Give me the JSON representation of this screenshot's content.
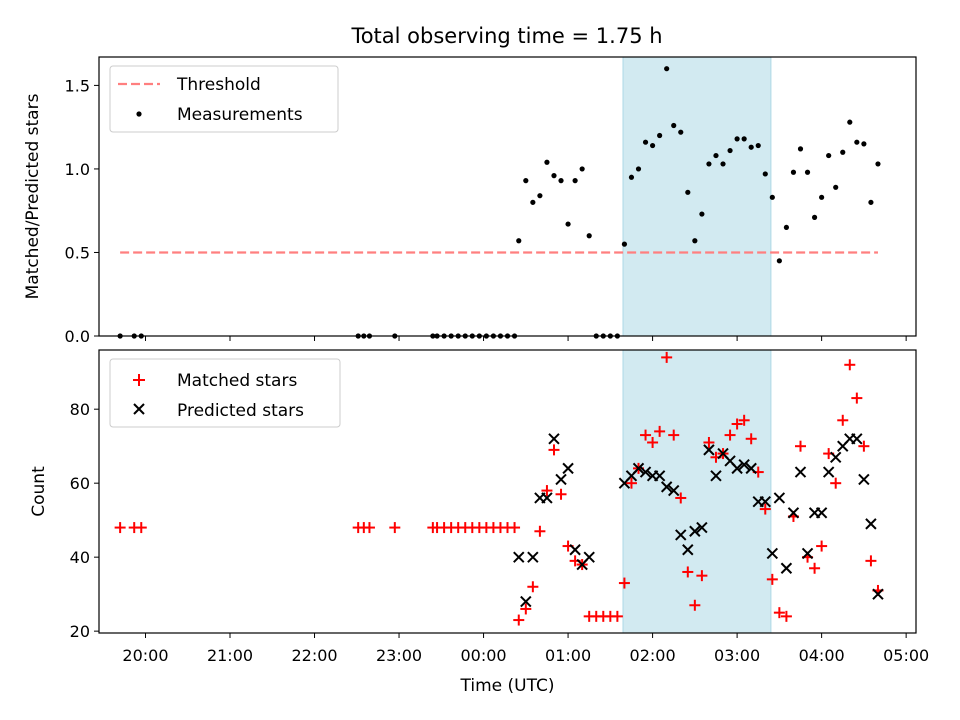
{
  "chart_data": [
    {
      "type": "scatter",
      "title": "Total observing time = 1.75 h",
      "xlabel": "",
      "ylabel": "Matched/Predicted stars",
      "xlim": [
        "19:27",
        "05:07"
      ],
      "ylim": [
        0,
        1.67
      ],
      "yticks": [
        0.0,
        0.5,
        1.0,
        1.5
      ],
      "ytick_labels": [
        "0.0",
        "0.5",
        "1.0",
        "1.5"
      ],
      "grid": false,
      "legend_position": "upper-left",
      "shaded_span": {
        "start": "01:39",
        "end": "03:24",
        "color": "#add8e6"
      },
      "series": [
        {
          "name": "Threshold",
          "kind": "dashed-line",
          "color": "#ff7f7f",
          "x": [
            "19:42",
            "04:40"
          ],
          "y": [
            0.5,
            0.5
          ]
        },
        {
          "name": "Measurements",
          "kind": "dots",
          "color": "#000000",
          "points": [
            [
              "19:42",
              0
            ],
            [
              "19:52",
              0
            ],
            [
              "19:57",
              0
            ],
            [
              "22:31",
              0
            ],
            [
              "22:35",
              0
            ],
            [
              "22:39",
              0
            ],
            [
              "22:57",
              0
            ],
            [
              "23:24",
              0
            ],
            [
              "23:27",
              0
            ],
            [
              "23:32",
              0
            ],
            [
              "23:37",
              0
            ],
            [
              "23:42",
              0
            ],
            [
              "23:47",
              0
            ],
            [
              "23:52",
              0
            ],
            [
              "23:57",
              0
            ],
            [
              "00:02",
              0
            ],
            [
              "00:07",
              0
            ],
            [
              "00:12",
              0
            ],
            [
              "00:17",
              0
            ],
            [
              "00:22",
              0
            ],
            [
              "00:25",
              0.57
            ],
            [
              "00:30",
              0.93
            ],
            [
              "00:35",
              0.8
            ],
            [
              "00:40",
              0.84
            ],
            [
              "00:45",
              1.04
            ],
            [
              "00:50",
              0.96
            ],
            [
              "00:55",
              0.93
            ],
            [
              "01:00",
              0.67
            ],
            [
              "01:05",
              0.93
            ],
            [
              "01:10",
              1.0
            ],
            [
              "01:15",
              0.6
            ],
            [
              "01:20",
              0
            ],
            [
              "01:25",
              0
            ],
            [
              "01:30",
              0
            ],
            [
              "01:35",
              0
            ],
            [
              "01:40",
              0.55
            ],
            [
              "01:45",
              0.95
            ],
            [
              "01:50",
              1.0
            ],
            [
              "01:55",
              1.16
            ],
            [
              "02:00",
              1.14
            ],
            [
              "02:05",
              1.2
            ],
            [
              "02:10",
              1.6
            ],
            [
              "02:15",
              1.26
            ],
            [
              "02:20",
              1.22
            ],
            [
              "02:25",
              0.86
            ],
            [
              "02:30",
              0.57
            ],
            [
              "02:35",
              0.73
            ],
            [
              "02:40",
              1.03
            ],
            [
              "02:45",
              1.08
            ],
            [
              "02:50",
              1.03
            ],
            [
              "02:55",
              1.11
            ],
            [
              "03:00",
              1.18
            ],
            [
              "03:05",
              1.18
            ],
            [
              "03:10",
              1.13
            ],
            [
              "03:15",
              1.14
            ],
            [
              "03:20",
              0.97
            ],
            [
              "03:25",
              0.83
            ],
            [
              "03:30",
              0.45
            ],
            [
              "03:35",
              0.65
            ],
            [
              "03:40",
              0.98
            ],
            [
              "03:45",
              1.12
            ],
            [
              "03:50",
              0.98
            ],
            [
              "03:55",
              0.71
            ],
            [
              "04:00",
              0.83
            ],
            [
              "04:05",
              1.08
            ],
            [
              "04:10",
              0.89
            ],
            [
              "04:15",
              1.1
            ],
            [
              "04:20",
              1.28
            ],
            [
              "04:25",
              1.16
            ],
            [
              "04:30",
              1.15
            ],
            [
              "04:35",
              0.8
            ],
            [
              "04:40",
              1.03
            ]
          ]
        }
      ],
      "legend": [
        "Threshold",
        "Measurements"
      ]
    },
    {
      "type": "scatter",
      "title": "",
      "xlabel": "Time (UTC)",
      "ylabel": "Count",
      "xlim": [
        "19:27",
        "05:07"
      ],
      "ylim": [
        19.5,
        96
      ],
      "yticks": [
        20,
        40,
        60,
        80
      ],
      "ytick_labels": [
        "20",
        "40",
        "60",
        "80"
      ],
      "xticks": [
        "20:00",
        "21:00",
        "22:00",
        "23:00",
        "00:00",
        "01:00",
        "02:00",
        "03:00",
        "04:00",
        "05:00"
      ],
      "grid": false,
      "legend_position": "upper-left",
      "shaded_span": {
        "start": "01:39",
        "end": "03:24",
        "color": "#add8e6"
      },
      "series": [
        {
          "name": "Matched stars",
          "marker": "+",
          "color": "#ff0000",
          "points": [
            [
              "19:42",
              48
            ],
            [
              "19:52",
              48
            ],
            [
              "19:57",
              48
            ],
            [
              "22:31",
              48
            ],
            [
              "22:35",
              48
            ],
            [
              "22:39",
              48
            ],
            [
              "22:57",
              48
            ],
            [
              "23:24",
              48
            ],
            [
              "23:27",
              48
            ],
            [
              "23:32",
              48
            ],
            [
              "23:37",
              48
            ],
            [
              "23:42",
              48
            ],
            [
              "23:47",
              48
            ],
            [
              "23:52",
              48
            ],
            [
              "23:57",
              48
            ],
            [
              "00:02",
              48
            ],
            [
              "00:07",
              48
            ],
            [
              "00:12",
              48
            ],
            [
              "00:17",
              48
            ],
            [
              "00:22",
              48
            ],
            [
              "00:25",
              23
            ],
            [
              "00:30",
              26
            ],
            [
              "00:35",
              32
            ],
            [
              "00:40",
              47
            ],
            [
              "00:45",
              58
            ],
            [
              "00:50",
              69
            ],
            [
              "00:55",
              57
            ],
            [
              "01:00",
              43
            ],
            [
              "01:05",
              39
            ],
            [
              "01:10",
              38
            ],
            [
              "01:15",
              24
            ],
            [
              "01:20",
              24
            ],
            [
              "01:25",
              24
            ],
            [
              "01:30",
              24
            ],
            [
              "01:35",
              24
            ],
            [
              "01:40",
              33
            ],
            [
              "01:45",
              60
            ],
            [
              "01:50",
              64
            ],
            [
              "01:55",
              73
            ],
            [
              "02:00",
              71
            ],
            [
              "02:05",
              74
            ],
            [
              "02:10",
              94
            ],
            [
              "02:15",
              73
            ],
            [
              "02:20",
              56
            ],
            [
              "02:25",
              36
            ],
            [
              "02:30",
              27
            ],
            [
              "02:35",
              35
            ],
            [
              "02:40",
              71
            ],
            [
              "02:45",
              67
            ],
            [
              "02:50",
              68
            ],
            [
              "02:55",
              73
            ],
            [
              "03:00",
              76
            ],
            [
              "03:05",
              77
            ],
            [
              "03:10",
              72
            ],
            [
              "03:15",
              63
            ],
            [
              "03:20",
              53
            ],
            [
              "03:25",
              34
            ],
            [
              "03:30",
              25
            ],
            [
              "03:35",
              24
            ],
            [
              "03:40",
              51
            ],
            [
              "03:45",
              70
            ],
            [
              "03:50",
              40
            ],
            [
              "03:55",
              37
            ],
            [
              "04:00",
              43
            ],
            [
              "04:05",
              68
            ],
            [
              "04:10",
              60
            ],
            [
              "04:15",
              77
            ],
            [
              "04:20",
              92
            ],
            [
              "04:25",
              83
            ],
            [
              "04:30",
              70
            ],
            [
              "04:35",
              39
            ],
            [
              "04:40",
              31
            ]
          ]
        },
        {
          "name": "Predicted stars",
          "marker": "x",
          "color": "#000000",
          "points": [
            [
              "00:25",
              40
            ],
            [
              "00:30",
              28
            ],
            [
              "00:35",
              40
            ],
            [
              "00:40",
              56
            ],
            [
              "00:45",
              56
            ],
            [
              "00:50",
              72
            ],
            [
              "00:55",
              61
            ],
            [
              "01:00",
              64
            ],
            [
              "01:05",
              42
            ],
            [
              "01:10",
              38
            ],
            [
              "01:15",
              40
            ],
            [
              "01:40",
              60
            ],
            [
              "01:45",
              62
            ],
            [
              "01:50",
              64
            ],
            [
              "01:55",
              63
            ],
            [
              "02:00",
              62
            ],
            [
              "02:05",
              62
            ],
            [
              "02:10",
              59
            ],
            [
              "02:15",
              58
            ],
            [
              "02:20",
              46
            ],
            [
              "02:25",
              42
            ],
            [
              "02:30",
              47
            ],
            [
              "02:35",
              48
            ],
            [
              "02:40",
              69
            ],
            [
              "02:45",
              62
            ],
            [
              "02:50",
              68
            ],
            [
              "02:55",
              66
            ],
            [
              "03:00",
              64
            ],
            [
              "03:05",
              65
            ],
            [
              "03:10",
              64
            ],
            [
              "03:15",
              55
            ],
            [
              "03:20",
              55
            ],
            [
              "03:25",
              41
            ],
            [
              "03:30",
              56
            ],
            [
              "03:35",
              37
            ],
            [
              "03:40",
              52
            ],
            [
              "03:45",
              63
            ],
            [
              "03:50",
              41
            ],
            [
              "03:55",
              52
            ],
            [
              "04:00",
              52
            ],
            [
              "04:05",
              63
            ],
            [
              "04:10",
              67
            ],
            [
              "04:15",
              70
            ],
            [
              "04:20",
              72
            ],
            [
              "04:25",
              72
            ],
            [
              "04:30",
              61
            ],
            [
              "04:35",
              49
            ],
            [
              "04:40",
              30
            ]
          ]
        }
      ],
      "legend": [
        "Matched stars",
        "Predicted stars"
      ]
    }
  ]
}
